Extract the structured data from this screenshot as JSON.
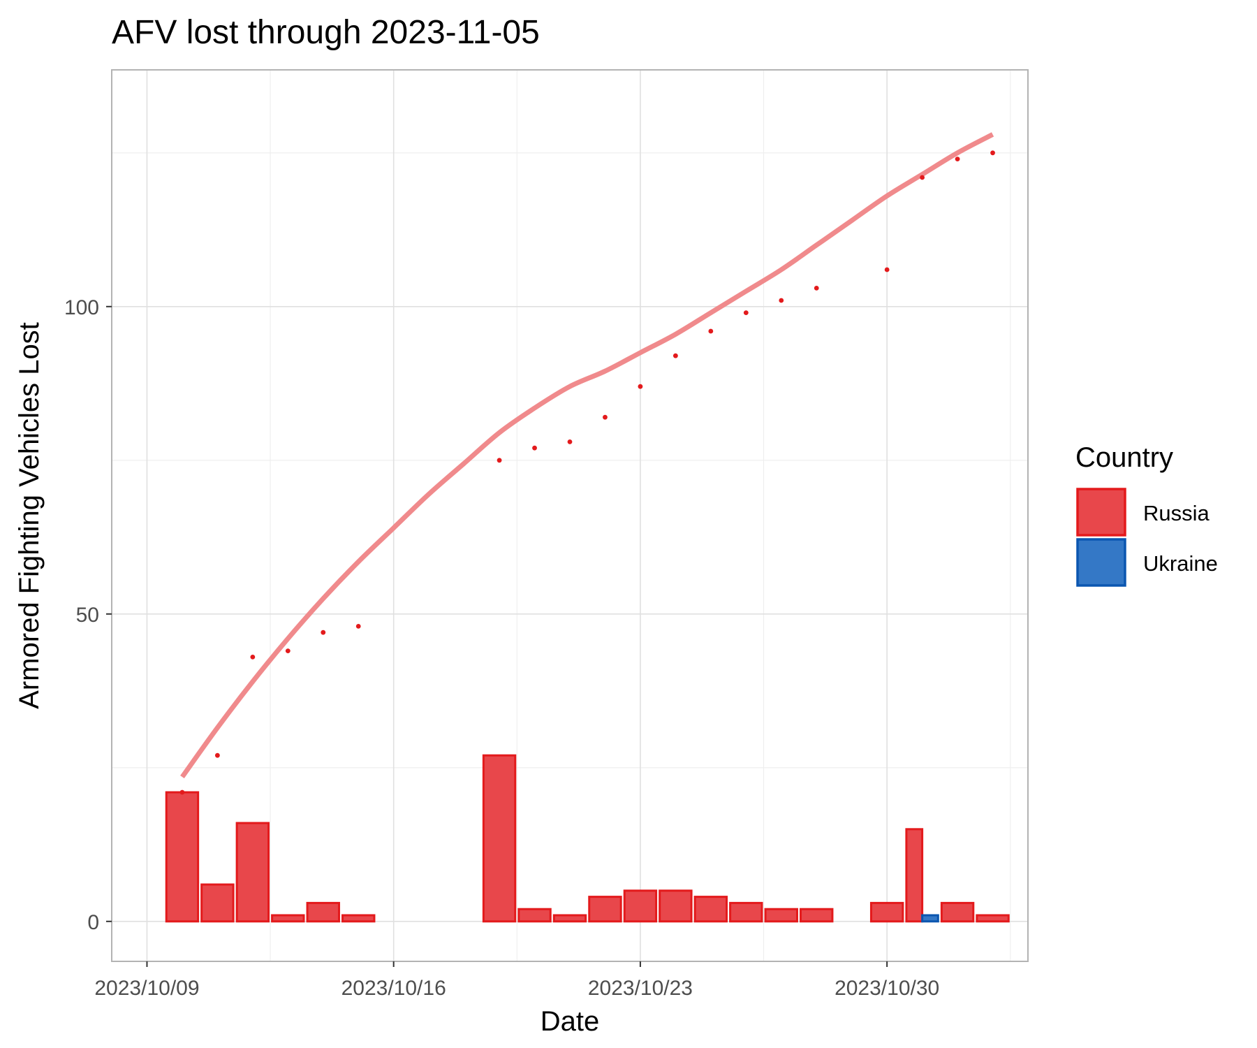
{
  "chart_data": {
    "type": "bar",
    "title": "AFV lost through 2023-11-05",
    "xlabel": "Date",
    "ylabel": "Armored Fighting Vehicles Lost",
    "x_tick_labels": [
      "2023/10/09",
      "2023/10/16",
      "2023/10/23",
      "2023/10/30"
    ],
    "x_tick_dates": [
      "2023-10-09",
      "2023-10-16",
      "2023-10-23",
      "2023-10-30"
    ],
    "y_tick_labels": [
      "0",
      "50",
      "100"
    ],
    "y_tick_values": [
      0,
      50,
      100
    ],
    "xlim": [
      "2023-10-08",
      "2023-11-03"
    ],
    "ylim": [
      -6.5,
      138.5
    ],
    "grid": true,
    "legend": {
      "title": "Country",
      "position": "right",
      "items": [
        {
          "label": "Russia",
          "color": "#e8474b",
          "border": "#e31a1c"
        },
        {
          "label": "Ukraine",
          "color": "#3478c6",
          "border": "#0b56b0"
        }
      ]
    },
    "series": [
      {
        "name": "Russia",
        "kind": "bar",
        "color": "#e8474b",
        "border": "#e31a1c",
        "points": [
          {
            "date": "2023-10-10",
            "value": 21
          },
          {
            "date": "2023-10-11",
            "value": 6
          },
          {
            "date": "2023-10-12",
            "value": 16
          },
          {
            "date": "2023-10-13",
            "value": 1
          },
          {
            "date": "2023-10-14",
            "value": 3
          },
          {
            "date": "2023-10-15",
            "value": 1
          },
          {
            "date": "2023-10-19",
            "value": 27
          },
          {
            "date": "2023-10-20",
            "value": 2
          },
          {
            "date": "2023-10-21",
            "value": 1
          },
          {
            "date": "2023-10-22",
            "value": 4
          },
          {
            "date": "2023-10-23",
            "value": 5
          },
          {
            "date": "2023-10-24",
            "value": 5
          },
          {
            "date": "2023-10-25",
            "value": 4
          },
          {
            "date": "2023-10-26",
            "value": 3
          },
          {
            "date": "2023-10-27",
            "value": 2
          },
          {
            "date": "2023-10-28",
            "value": 2
          },
          {
            "date": "2023-10-30",
            "value": 3
          },
          {
            "date": "2023-10-31",
            "value": 15
          },
          {
            "date": "2023-11-01",
            "value": 3
          },
          {
            "date": "2023-11-02",
            "value": 1
          }
        ]
      },
      {
        "name": "Ukraine",
        "kind": "bar",
        "color": "#3478c6",
        "border": "#0b56b0",
        "points": [
          {
            "date": "2023-10-31",
            "value": 1
          }
        ]
      },
      {
        "name": "Russia",
        "kind": "scatter",
        "color": "#e31a1c",
        "points": [
          {
            "date": "2023-10-10",
            "value": 21
          },
          {
            "date": "2023-10-11",
            "value": 27
          },
          {
            "date": "2023-10-12",
            "value": 43
          },
          {
            "date": "2023-10-13",
            "value": 44
          },
          {
            "date": "2023-10-14",
            "value": 47
          },
          {
            "date": "2023-10-15",
            "value": 48
          },
          {
            "date": "2023-10-19",
            "value": 75
          },
          {
            "date": "2023-10-20",
            "value": 77
          },
          {
            "date": "2023-10-21",
            "value": 78
          },
          {
            "date": "2023-10-22",
            "value": 82
          },
          {
            "date": "2023-10-23",
            "value": 87
          },
          {
            "date": "2023-10-24",
            "value": 92
          },
          {
            "date": "2023-10-25",
            "value": 96
          },
          {
            "date": "2023-10-26",
            "value": 99
          },
          {
            "date": "2023-10-27",
            "value": 101
          },
          {
            "date": "2023-10-28",
            "value": 103
          },
          {
            "date": "2023-10-30",
            "value": 106
          },
          {
            "date": "2023-10-31",
            "value": 121
          },
          {
            "date": "2023-11-01",
            "value": 124
          },
          {
            "date": "2023-11-02",
            "value": 125
          }
        ]
      },
      {
        "name": "Russia",
        "kind": "smooth-line",
        "color": "#f08a8c",
        "points": [
          {
            "date": "2023-10-10",
            "value": 23.5
          },
          {
            "date": "2023-10-11",
            "value": 31.5
          },
          {
            "date": "2023-10-12",
            "value": 39
          },
          {
            "date": "2023-10-13",
            "value": 46
          },
          {
            "date": "2023-10-14",
            "value": 52.5
          },
          {
            "date": "2023-10-15",
            "value": 58.5
          },
          {
            "date": "2023-10-16",
            "value": 64
          },
          {
            "date": "2023-10-17",
            "value": 69.5
          },
          {
            "date": "2023-10-18",
            "value": 74.5
          },
          {
            "date": "2023-10-19",
            "value": 79.5
          },
          {
            "date": "2023-10-20",
            "value": 83.5
          },
          {
            "date": "2023-10-21",
            "value": 87
          },
          {
            "date": "2023-10-22",
            "value": 89.5
          },
          {
            "date": "2023-10-23",
            "value": 92.5
          },
          {
            "date": "2023-10-24",
            "value": 95.5
          },
          {
            "date": "2023-10-25",
            "value": 99
          },
          {
            "date": "2023-10-26",
            "value": 102.5
          },
          {
            "date": "2023-10-27",
            "value": 106
          },
          {
            "date": "2023-10-28",
            "value": 110
          },
          {
            "date": "2023-10-29",
            "value": 114
          },
          {
            "date": "2023-10-30",
            "value": 118
          },
          {
            "date": "2023-10-31",
            "value": 121.5
          },
          {
            "date": "2023-11-01",
            "value": 125
          },
          {
            "date": "2023-11-02",
            "value": 128
          }
        ]
      }
    ]
  }
}
